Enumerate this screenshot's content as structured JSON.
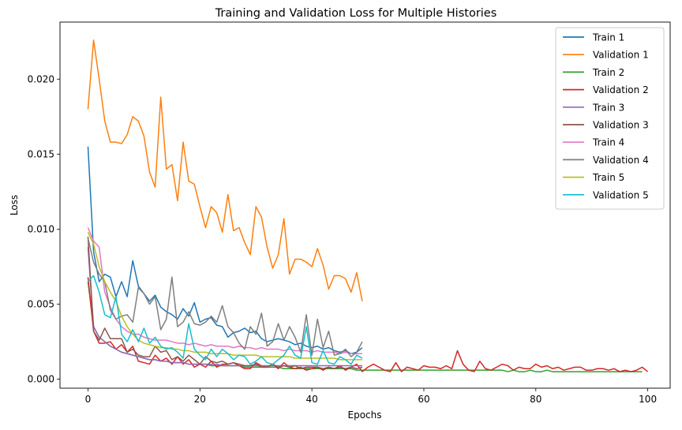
{
  "chart_data": {
    "type": "line",
    "title": "Training and Validation Loss for Multiple Histories",
    "xlabel": "Epochs",
    "ylabel": "Loss",
    "xlim": [
      -5,
      104
    ],
    "ylim": [
      -0.0006,
      0.0238
    ],
    "xticks": [
      0,
      20,
      40,
      60,
      80,
      100
    ],
    "xtick_labels": [
      "0",
      "20",
      "40",
      "60",
      "80",
      "100"
    ],
    "yticks": [
      0.0,
      0.005,
      0.01,
      0.015,
      0.02
    ],
    "ytick_labels": [
      "0.000",
      "0.005",
      "0.010",
      "0.015",
      "0.020"
    ],
    "grid": false,
    "legend_position": "top-right",
    "series": [
      {
        "name": "Train 1",
        "color": "#1f77b4",
        "values": [
          0.0155,
          0.0085,
          0.0065,
          0.007,
          0.0068,
          0.0055,
          0.0065,
          0.0055,
          0.0079,
          0.0062,
          0.0057,
          0.0052,
          0.0056,
          0.0048,
          0.0045,
          0.0043,
          0.004,
          0.0047,
          0.0042,
          0.0051,
          0.0038,
          0.004,
          0.0041,
          0.0036,
          0.0035,
          0.0028,
          0.0031,
          0.0032,
          0.0034,
          0.0031,
          0.0032,
          0.0027,
          0.0025,
          0.0026,
          0.0027,
          0.0026,
          0.0025,
          0.0023,
          0.0024,
          0.0022,
          0.0021,
          0.0022,
          0.002,
          0.0021,
          0.0019,
          0.0018,
          0.0019,
          0.0017,
          0.0018,
          0.0021
        ]
      },
      {
        "name": "Validation 1",
        "color": "#ff7f0e",
        "values": [
          0.018,
          0.0226,
          0.02,
          0.0172,
          0.0158,
          0.0158,
          0.0157,
          0.0163,
          0.0175,
          0.0172,
          0.0162,
          0.0138,
          0.0128,
          0.0188,
          0.014,
          0.0143,
          0.0119,
          0.0158,
          0.0132,
          0.013,
          0.0115,
          0.0101,
          0.0115,
          0.0111,
          0.0098,
          0.0123,
          0.0099,
          0.0101,
          0.0091,
          0.0083,
          0.0115,
          0.0108,
          0.0088,
          0.0074,
          0.0083,
          0.0107,
          0.007,
          0.008,
          0.008,
          0.0078,
          0.0075,
          0.0087,
          0.0076,
          0.006,
          0.0069,
          0.0069,
          0.0067,
          0.0058,
          0.0071,
          0.0052
        ]
      },
      {
        "name": "Train 2",
        "color": "#2ca02c",
        "values": [
          0.0065,
          0.0035,
          0.0028,
          0.0025,
          0.0022,
          0.002,
          0.0018,
          0.0017,
          0.0016,
          0.0015,
          0.0014,
          0.0013,
          0.0013,
          0.0012,
          0.0012,
          0.0011,
          0.0011,
          0.0011,
          0.001,
          0.001,
          0.001,
          0.001,
          0.0009,
          0.0009,
          0.0009,
          0.0009,
          0.0009,
          0.0009,
          0.0008,
          0.0008,
          0.0008,
          0.0008,
          0.0008,
          0.0008,
          0.0008,
          0.0007,
          0.0007,
          0.0007,
          0.0007,
          0.0007,
          0.0007,
          0.0007,
          0.0007,
          0.0007,
          0.0007,
          0.0007,
          0.0007,
          0.0007,
          0.0006,
          0.0006,
          0.0006,
          0.0006,
          0.0006,
          0.0006,
          0.0006,
          0.0006,
          0.0006,
          0.0006,
          0.0006,
          0.0006,
          0.0006,
          0.0006,
          0.0006,
          0.0006,
          0.0006,
          0.0006,
          0.0006,
          0.0006,
          0.0006,
          0.0006,
          0.0006,
          0.0006,
          0.0006,
          0.0006,
          0.0006,
          0.0005,
          0.0006,
          0.0005,
          0.0005,
          0.0006,
          0.0005,
          0.0005,
          0.0006,
          0.0005,
          0.0005,
          0.0005,
          0.0005,
          0.0005,
          0.0005,
          0.0005,
          0.0005,
          0.0005,
          0.0005,
          0.0005,
          0.0005,
          0.0005,
          0.0005,
          0.0005,
          0.0005,
          0.0005
        ]
      },
      {
        "name": "Validation 2",
        "color": "#d62728",
        "values": [
          0.0068,
          0.0032,
          0.0024,
          0.0024,
          0.0025,
          0.002,
          0.0023,
          0.0018,
          0.0022,
          0.0012,
          0.0011,
          0.001,
          0.0016,
          0.0012,
          0.0014,
          0.001,
          0.0015,
          0.001,
          0.0013,
          0.0008,
          0.001,
          0.0008,
          0.0012,
          0.0008,
          0.001,
          0.001,
          0.0011,
          0.0009,
          0.0007,
          0.0007,
          0.0011,
          0.0009,
          0.0008,
          0.001,
          0.0007,
          0.0011,
          0.0008,
          0.0007,
          0.0008,
          0.0006,
          0.0007,
          0.0008,
          0.0006,
          0.0008,
          0.0007,
          0.0009,
          0.0006,
          0.0008,
          0.001,
          0.0005,
          0.0008,
          0.001,
          0.0008,
          0.0006,
          0.0005,
          0.0011,
          0.0005,
          0.0008,
          0.0007,
          0.0006,
          0.0009,
          0.0008,
          0.0008,
          0.0007,
          0.0009,
          0.0007,
          0.0019,
          0.001,
          0.0006,
          0.0005,
          0.0012,
          0.0007,
          0.0006,
          0.0008,
          0.001,
          0.0009,
          0.0006,
          0.0008,
          0.0007,
          0.0007,
          0.001,
          0.0008,
          0.0009,
          0.0007,
          0.0008,
          0.0006,
          0.0007,
          0.0008,
          0.0008,
          0.0006,
          0.0006,
          0.0007,
          0.0007,
          0.0006,
          0.0007,
          0.0005,
          0.0006,
          0.0005,
          0.0006,
          0.0008,
          0.0005
        ]
      },
      {
        "name": "Train 3",
        "color": "#9467bd",
        "values": [
          0.0088,
          0.0035,
          0.0028,
          0.0025,
          0.0022,
          0.002,
          0.0018,
          0.0017,
          0.0016,
          0.0015,
          0.0014,
          0.0013,
          0.0013,
          0.0012,
          0.0012,
          0.0011,
          0.0011,
          0.0011,
          0.001,
          0.001,
          0.001,
          0.001,
          0.001,
          0.001,
          0.0009,
          0.0009,
          0.0009,
          0.0009,
          0.0009,
          0.0009,
          0.0009,
          0.0009,
          0.0009,
          0.0009,
          0.0009,
          0.0009,
          0.0009,
          0.0009,
          0.0009,
          0.0009,
          0.0009,
          0.0009,
          0.0009,
          0.0009,
          0.0009,
          0.0009,
          0.0009,
          0.0009,
          0.0009,
          0.0009
        ]
      },
      {
        "name": "Validation 3",
        "color": "#8c564b",
        "values": [
          0.0095,
          0.0032,
          0.0026,
          0.0034,
          0.0027,
          0.0027,
          0.0027,
          0.0018,
          0.002,
          0.0016,
          0.0015,
          0.0015,
          0.0022,
          0.0018,
          0.0019,
          0.0013,
          0.0015,
          0.0012,
          0.0016,
          0.0013,
          0.001,
          0.0015,
          0.0012,
          0.0011,
          0.0012,
          0.001,
          0.0011,
          0.001,
          0.0009,
          0.0009,
          0.001,
          0.0008,
          0.0008,
          0.001,
          0.0008,
          0.0009,
          0.0008,
          0.0009,
          0.0007,
          0.0008,
          0.0008,
          0.0008,
          0.0007,
          0.0008,
          0.0007,
          0.0008,
          0.0007,
          0.0008,
          0.0007,
          0.0008
        ]
      },
      {
        "name": "Train 4",
        "color": "#e377c2",
        "values": [
          0.0101,
          0.0092,
          0.0088,
          0.0058,
          0.0048,
          0.004,
          0.0035,
          0.0032,
          0.003,
          0.003,
          0.0028,
          0.0027,
          0.0026,
          0.0026,
          0.0026,
          0.0025,
          0.0024,
          0.0024,
          0.0023,
          0.0024,
          0.0023,
          0.0022,
          0.0023,
          0.0022,
          0.0022,
          0.0022,
          0.0021,
          0.0022,
          0.0021,
          0.0021,
          0.002,
          0.0021,
          0.002,
          0.002,
          0.002,
          0.0019,
          0.002,
          0.0019,
          0.0019,
          0.0019,
          0.0018,
          0.0019,
          0.0018,
          0.0018,
          0.0018,
          0.0017,
          0.0018,
          0.0017,
          0.0017,
          0.0017
        ]
      },
      {
        "name": "Validation 4",
        "color": "#7f7f7f",
        "values": [
          0.0094,
          0.0078,
          0.007,
          0.0065,
          0.0046,
          0.004,
          0.0042,
          0.0043,
          0.0038,
          0.0061,
          0.0057,
          0.005,
          0.0055,
          0.0033,
          0.004,
          0.0068,
          0.0035,
          0.0038,
          0.0045,
          0.0037,
          0.0036,
          0.0038,
          0.0042,
          0.0038,
          0.0049,
          0.0035,
          0.0031,
          0.0024,
          0.002,
          0.0035,
          0.003,
          0.0044,
          0.0022,
          0.0025,
          0.0037,
          0.0026,
          0.0035,
          0.0028,
          0.0018,
          0.0043,
          0.0016,
          0.004,
          0.0021,
          0.0032,
          0.0016,
          0.0017,
          0.002,
          0.0015,
          0.0018,
          0.0025
        ]
      },
      {
        "name": "Train 5",
        "color": "#bcbd22",
        "values": [
          0.0098,
          0.009,
          0.0075,
          0.0065,
          0.0058,
          0.0052,
          0.0042,
          0.0035,
          0.003,
          0.0026,
          0.0024,
          0.0023,
          0.0022,
          0.0021,
          0.0021,
          0.002,
          0.002,
          0.0019,
          0.0019,
          0.0018,
          0.0018,
          0.0018,
          0.0017,
          0.0017,
          0.0017,
          0.0017,
          0.0016,
          0.0016,
          0.0016,
          0.0016,
          0.0016,
          0.0015,
          0.0015,
          0.0015,
          0.0015,
          0.0015,
          0.0015,
          0.0014,
          0.0014,
          0.0014,
          0.0014,
          0.0014,
          0.0014,
          0.0014,
          0.0014,
          0.0013,
          0.0013,
          0.0013,
          0.0013,
          0.0013
        ]
      },
      {
        "name": "Validation 5",
        "color": "#17becf",
        "values": [
          0.0065,
          0.0069,
          0.0058,
          0.0043,
          0.0041,
          0.0055,
          0.003,
          0.0025,
          0.0033,
          0.0025,
          0.0034,
          0.0024,
          0.0028,
          0.0022,
          0.002,
          0.0021,
          0.0018,
          0.0014,
          0.0037,
          0.002,
          0.0016,
          0.0013,
          0.002,
          0.0015,
          0.002,
          0.0017,
          0.0013,
          0.0016,
          0.0015,
          0.001,
          0.0012,
          0.0015,
          0.0011,
          0.001,
          0.0013,
          0.0016,
          0.0022,
          0.0016,
          0.0014,
          0.0035,
          0.0011,
          0.001,
          0.0019,
          0.0011,
          0.001,
          0.0015,
          0.0013,
          0.001,
          0.0016,
          0.0014
        ]
      }
    ]
  }
}
